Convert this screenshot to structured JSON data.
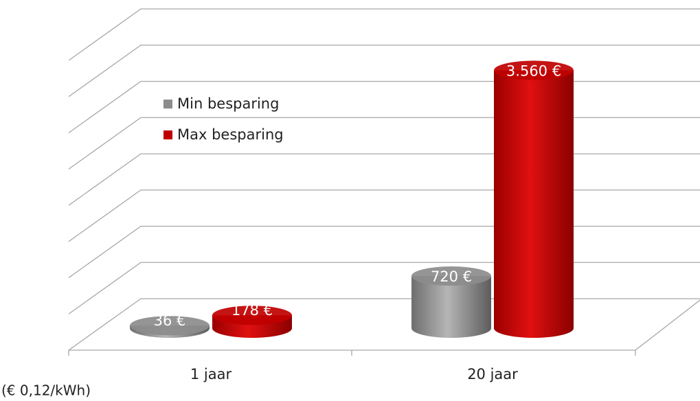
{
  "chart_data": {
    "type": "bar",
    "style": "3d-cylinder",
    "categories": [
      "1 jaar",
      "20 jaar"
    ],
    "series": [
      {
        "name": "Min besparing",
        "color": "#8c8c8c",
        "values": [
          36,
          720
        ],
        "value_labels": [
          "36 €",
          "720 €"
        ]
      },
      {
        "name": "Max besparing",
        "color": "#c00000",
        "values": [
          178,
          3560
        ],
        "value_labels": [
          "178 €",
          "3.560 €"
        ]
      }
    ],
    "ylim": [
      0,
      4000
    ],
    "yticks": [
      0,
      500,
      1000,
      1500,
      2000,
      2500,
      3000,
      3500,
      4000
    ],
    "grid": true,
    "legend": "upper left",
    "note": "(€ 0,12/kWh)"
  }
}
